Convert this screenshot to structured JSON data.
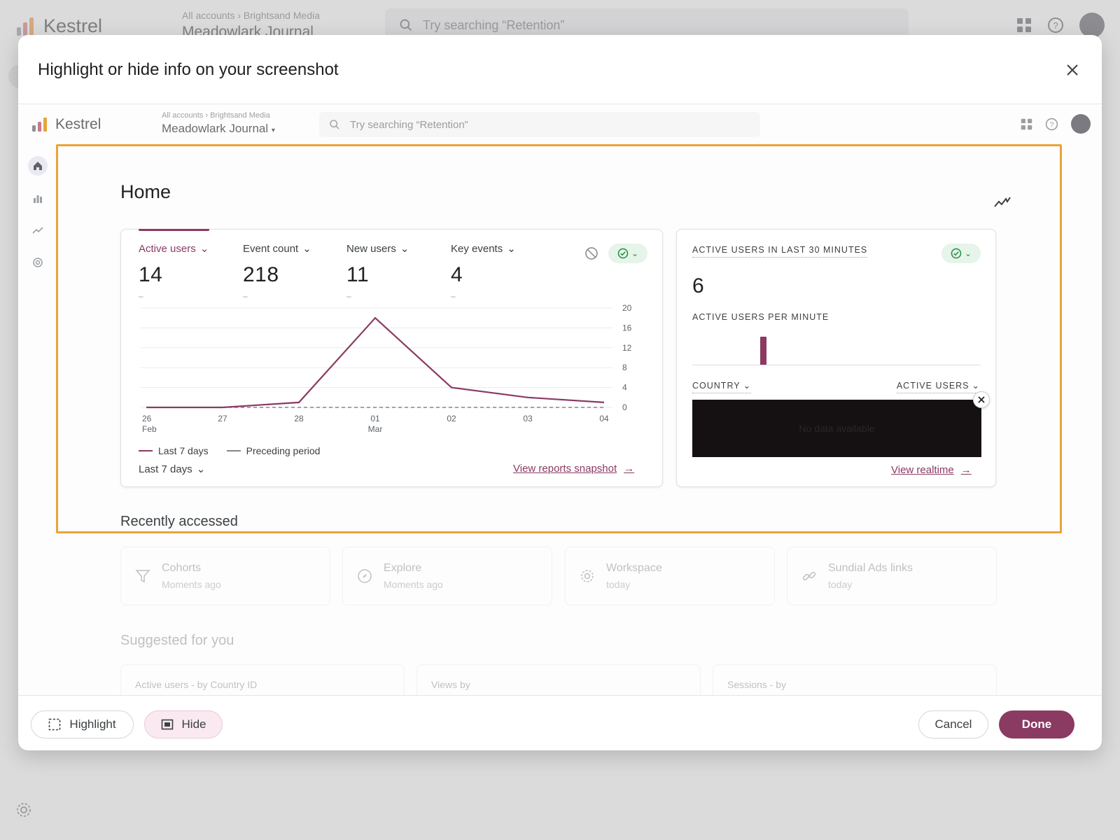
{
  "background": {
    "app_name": "Kestrel",
    "breadcrumb": "All accounts › Brightsand Media",
    "property": "Meadowlark Journal",
    "search_placeholder": "Try searching “Retention”"
  },
  "modal": {
    "title": "Highlight or hide info on your screenshot",
    "close_icon": "close-icon"
  },
  "screenshot": {
    "app_name": "Kestrel",
    "breadcrumb": "All accounts › Brightsand Media",
    "property": "Meadowlark Journal",
    "search_placeholder": "Try searching “Retention”",
    "page_title": "Home",
    "metrics": [
      {
        "label": "Active users",
        "value": "14",
        "change": "–"
      },
      {
        "label": "Event count",
        "value": "218",
        "change": "–"
      },
      {
        "label": "New users",
        "value": "11",
        "change": "–"
      },
      {
        "label": "Key events",
        "value": "4",
        "change": "–"
      }
    ],
    "legend": {
      "current": "Last 7 days",
      "previous": "Preceding period"
    },
    "date_range": "Last 7 days",
    "view_reports": "View reports snapshot",
    "realtime": {
      "title": "ACTIVE USERS IN LAST 30 MINUTES",
      "value": "6",
      "per_minute_label": "ACTIVE USERS PER MINUTE",
      "per_minute_bars": [
        {
          "minute_index": 7,
          "value": 6
        }
      ],
      "col_country": "COUNTRY",
      "col_users": "ACTIVE USERS",
      "no_data": "No data available",
      "view_link": "View realtime"
    },
    "recently_accessed": {
      "title": "Recently accessed",
      "items": [
        {
          "icon": "funnel-icon",
          "name": "Cohorts",
          "time": "Moments ago"
        },
        {
          "icon": "compass-icon",
          "name": "Explore",
          "time": "Moments ago"
        },
        {
          "icon": "gear-icon",
          "name": "Workspace",
          "time": "today"
        },
        {
          "icon": "link-icon",
          "name": "Sundial Ads links",
          "time": "today"
        }
      ]
    },
    "suggested": {
      "title": "Suggested for you",
      "items": [
        "Active users - by Country ID",
        "Views by",
        "Sessions - by"
      ]
    }
  },
  "footer": {
    "highlight": "Highlight",
    "hide": "Hide",
    "cancel": "Cancel",
    "done": "Done"
  },
  "colors": {
    "accent": "#8b3a62",
    "highlight_border": "#eaa33a",
    "status_ok": "#1e8e3e"
  },
  "chart_data": {
    "type": "line",
    "x": [
      "26 Feb",
      "27",
      "28",
      "01 Mar",
      "02",
      "03",
      "04"
    ],
    "xtick_labels": [
      [
        "26",
        "Feb"
      ],
      [
        "27"
      ],
      [
        "28"
      ],
      [
        "01",
        "Mar"
      ],
      [
        "02"
      ],
      [
        "03"
      ],
      [
        "04"
      ]
    ],
    "series": [
      {
        "name": "Last 7 days",
        "values": [
          0,
          0,
          1,
          18,
          4,
          2,
          1
        ],
        "color": "#8b3a62",
        "style": "solid"
      },
      {
        "name": "Preceding period",
        "values": [
          0,
          0,
          0,
          0,
          0,
          0,
          0
        ],
        "color": "#80868b",
        "style": "dashed"
      }
    ],
    "yticks": [
      0,
      4,
      8,
      12,
      16,
      20
    ],
    "ylim": [
      0,
      20
    ],
    "y_axis_side": "right",
    "grid": true
  }
}
